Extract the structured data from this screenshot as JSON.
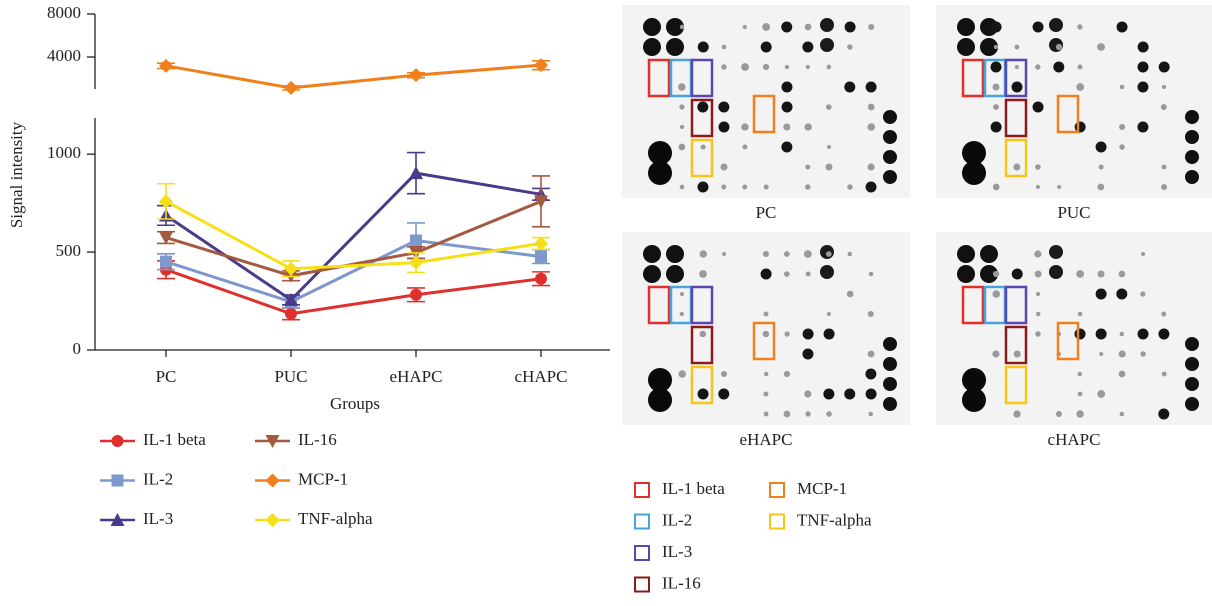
{
  "chart_data": {
    "type": "line",
    "ylabel": "Signal intensity",
    "xlabel": "Groups",
    "categories": [
      "PC",
      "PUC",
      "eHAPC",
      "cHAPC"
    ],
    "ylim": [
      0,
      1200
    ],
    "yticks": [
      0,
      500,
      1000
    ],
    "y2lim": [
      2400,
      8000
    ],
    "y2ticks": [
      4000,
      8000
    ],
    "y2log": true,
    "series": [
      {
        "name": "IL-1 beta",
        "color": "#e0302d",
        "marker": "circle",
        "values": [
          410,
          185,
          282,
          364
        ],
        "errors": [
          45,
          30,
          35,
          35
        ]
      },
      {
        "name": "IL-2",
        "color": "#7e97cc",
        "marker": "square",
        "values": [
          451,
          246,
          559,
          477
        ],
        "errors": [
          40,
          30,
          90,
          35
        ]
      },
      {
        "name": "IL-3",
        "color": "#4b3a8a",
        "marker": "triangle",
        "values": [
          687,
          256,
          903,
          795
        ],
        "errors": [
          50,
          25,
          105,
          30
        ]
      },
      {
        "name": "IL-16",
        "color": "#a35a3e",
        "marker": "triangle-down",
        "values": [
          574,
          379,
          497,
          759
        ],
        "errors": [
          30,
          25,
          30,
          130
        ]
      },
      {
        "name": "MCP-1",
        "color": "#f07f1c",
        "marker": "diamond",
        "axis": "y2",
        "values": [
          3470,
          2430,
          2985,
          3510
        ],
        "errors": [
          150,
          80,
          120,
          250
        ]
      },
      {
        "name": "TNF-alpha",
        "color": "#f5e018",
        "marker": "diamond",
        "values": [
          759,
          415,
          446,
          544
        ],
        "errors": [
          90,
          40,
          50,
          30
        ]
      }
    ]
  },
  "blots": {
    "panels": [
      "PC",
      "PUC",
      "eHAPC",
      "cHAPC"
    ],
    "legend": [
      {
        "name": "IL-1 beta",
        "color": "#e0302d"
      },
      {
        "name": "IL-2",
        "color": "#4aa3d8"
      },
      {
        "name": "IL-3",
        "color": "#5b45b0"
      },
      {
        "name": "IL-16",
        "color": "#8b1a1a"
      },
      {
        "name": "MCP-1",
        "color": "#f07f1c"
      },
      {
        "name": "TNF-alpha",
        "color": "#f5c518"
      }
    ]
  }
}
